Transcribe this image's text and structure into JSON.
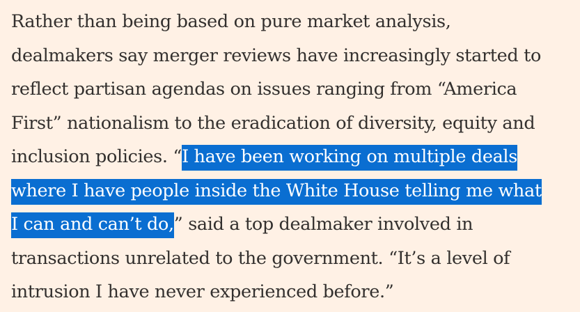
{
  "article": {
    "lines": [
      {
        "before": "Rather than being based on pure market analysis,",
        "selected": "",
        "after": ""
      },
      {
        "before": "dealmakers say merger reviews have increasingly started to",
        "selected": "",
        "after": ""
      },
      {
        "before": "reflect partisan agendas on issues ranging from “America",
        "selected": "",
        "after": ""
      },
      {
        "before": "First” nationalism to the eradication of diversity, equity and",
        "selected": "",
        "after": ""
      },
      {
        "before": "inclusion policies. “",
        "selected": "I have been working on multiple deals ",
        "after": ""
      },
      {
        "before": "",
        "selected": "where I have people inside the White House telling me what ",
        "after": ""
      },
      {
        "before": "",
        "selected": "I can and can’t do,",
        "after": "” said a top dealmaker involved in"
      },
      {
        "before": "transactions unrelated to the government. “It’s a level of",
        "selected": "",
        "after": ""
      },
      {
        "before": "intrusion I have never experienced before.”",
        "selected": "",
        "after": ""
      }
    ]
  },
  "colors": {
    "background": "#fff1e5",
    "text": "#33302e",
    "selection_background": "#0a6ed1",
    "selection_text": "#ffffff"
  }
}
